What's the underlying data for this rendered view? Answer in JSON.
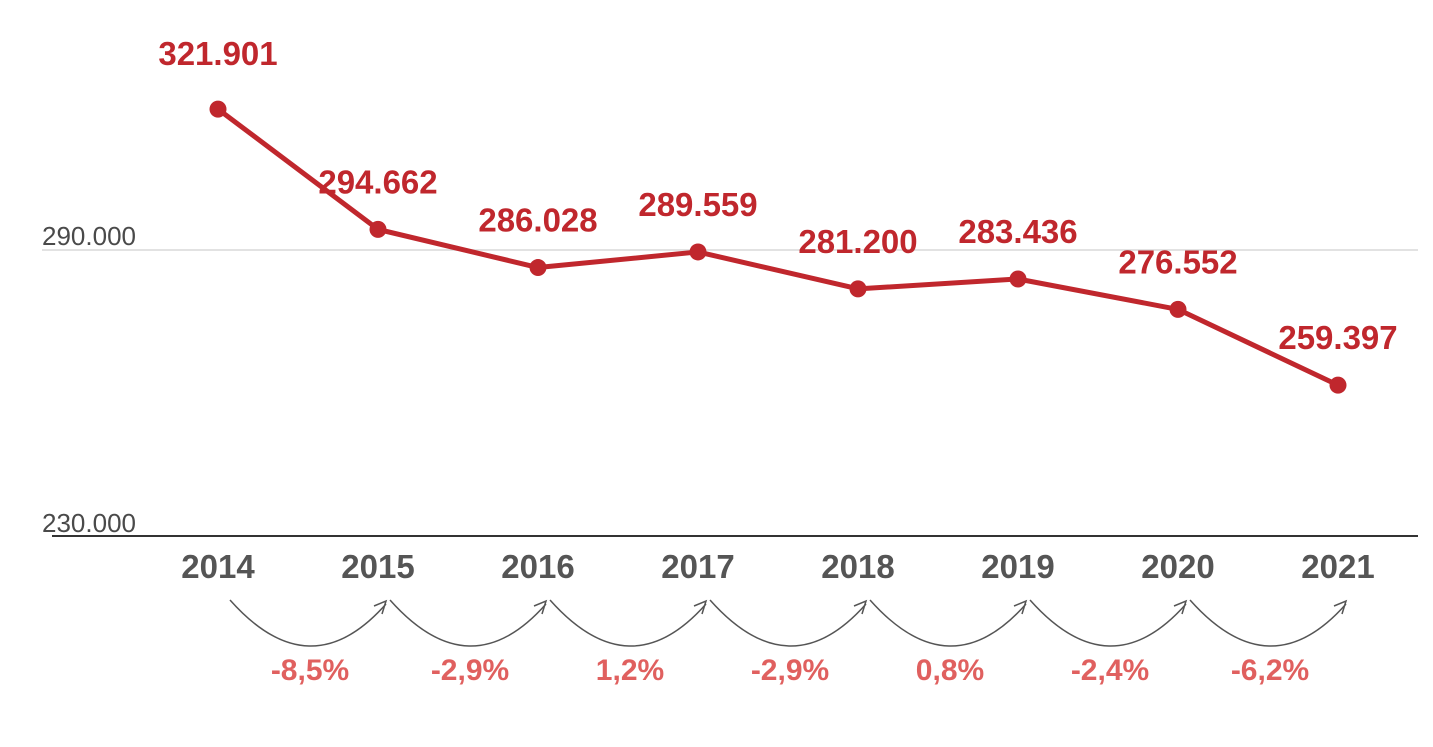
{
  "chart_data": {
    "type": "line",
    "title": "",
    "xlabel": "",
    "ylabel": "",
    "x": [
      "2014",
      "2015",
      "2016",
      "2017",
      "2018",
      "2019",
      "2020",
      "2021"
    ],
    "series": [
      {
        "values": [
          321901,
          294662,
          286028,
          289559,
          281200,
          283436,
          276552,
          259397
        ],
        "labels": [
          "321.901",
          "294.662",
          "286.028",
          "289.559",
          "281.200",
          "283.436",
          "276.552",
          "259.397"
        ]
      }
    ],
    "y_ticks": [
      {
        "value": 290000,
        "label": "290.000"
      },
      {
        "value": 230000,
        "label": "230.000"
      }
    ],
    "ylim": [
      230000,
      325000
    ],
    "changes": [
      "-8,5%",
      "-2,9%",
      "1,2%",
      "-2,9%",
      "0,8%",
      "-2,4%",
      "-6,2%"
    ],
    "grid": true,
    "legend": "none",
    "colors": {
      "line": "#c0272d",
      "value_label": "#c0272d",
      "change_label": "#e0605f",
      "year_label": "#555555",
      "gridline": "#d9d9d9",
      "axis": "#333333",
      "arrow": "#555555"
    }
  }
}
